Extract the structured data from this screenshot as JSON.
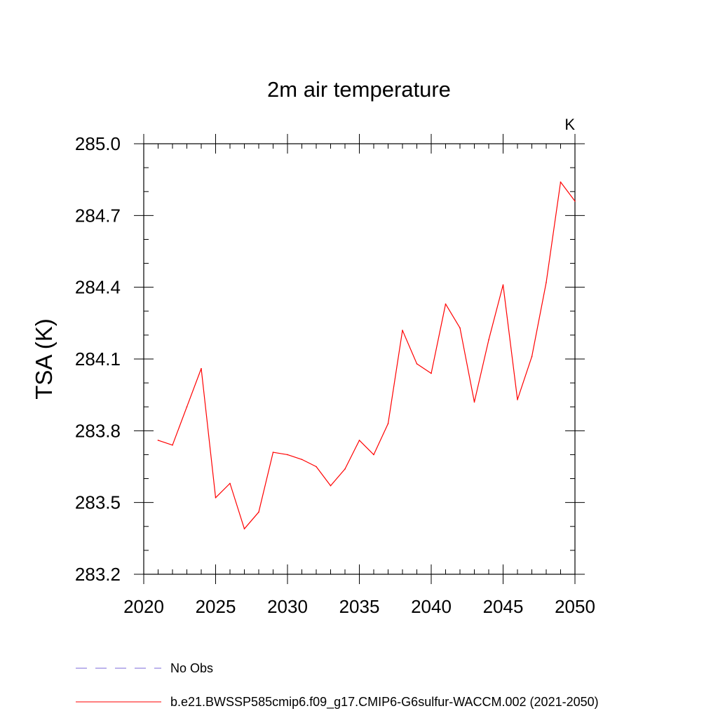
{
  "chart_data": {
    "type": "line",
    "title": "2m air temperature",
    "units_label": "K",
    "ylabel": "TSA  (K)",
    "xlabel": "",
    "xlim": [
      2020,
      2050
    ],
    "ylim": [
      283.2,
      285.0
    ],
    "x_ticks": [
      2020,
      2025,
      2030,
      2035,
      2040,
      2045,
      2050
    ],
    "x_tick_labels": [
      "2020",
      "2025",
      "2030",
      "2035",
      "2040",
      "2045",
      "2050"
    ],
    "y_ticks": [
      283.2,
      283.5,
      283.8,
      284.1,
      284.4,
      284.7,
      285.0
    ],
    "y_tick_labels": [
      "283.2",
      "283.5",
      "283.8",
      "284.1",
      "284.4",
      "284.7",
      "285.0"
    ],
    "x_minor_step": 1,
    "y_minor_step": 0.1,
    "grid": false,
    "series": [
      {
        "name": "b.e21.BWSSP585cmip6.f09_g17.CMIP6-G6sulfur-WACCM.002 (2021-2050)",
        "color": "#ff0000",
        "dash": "solid",
        "x": [
          2021,
          2022,
          2023,
          2024,
          2025,
          2026,
          2027,
          2028,
          2029,
          2030,
          2031,
          2032,
          2033,
          2034,
          2035,
          2036,
          2037,
          2038,
          2039,
          2040,
          2041,
          2042,
          2043,
          2044,
          2045,
          2046,
          2047,
          2048,
          2049,
          2050
        ],
        "y": [
          283.76,
          283.74,
          283.9,
          284.06,
          283.52,
          283.58,
          283.39,
          283.46,
          283.71,
          283.7,
          283.68,
          283.65,
          283.57,
          283.64,
          283.76,
          283.7,
          283.83,
          284.22,
          284.08,
          284.04,
          284.33,
          284.23,
          283.92,
          284.18,
          284.41,
          283.93,
          284.11,
          284.42,
          284.84,
          284.76
        ]
      }
    ],
    "legend": {
      "placement": "bottom",
      "entries": [
        {
          "label": "No Obs",
          "color": "#7b68d8",
          "dash": "dashed"
        },
        {
          "label": "b.e21.BWSSP585cmip6.f09_g17.CMIP6-G6sulfur-WACCM.002 (2021-2050)",
          "color": "#ff0000",
          "dash": "solid"
        }
      ]
    }
  }
}
